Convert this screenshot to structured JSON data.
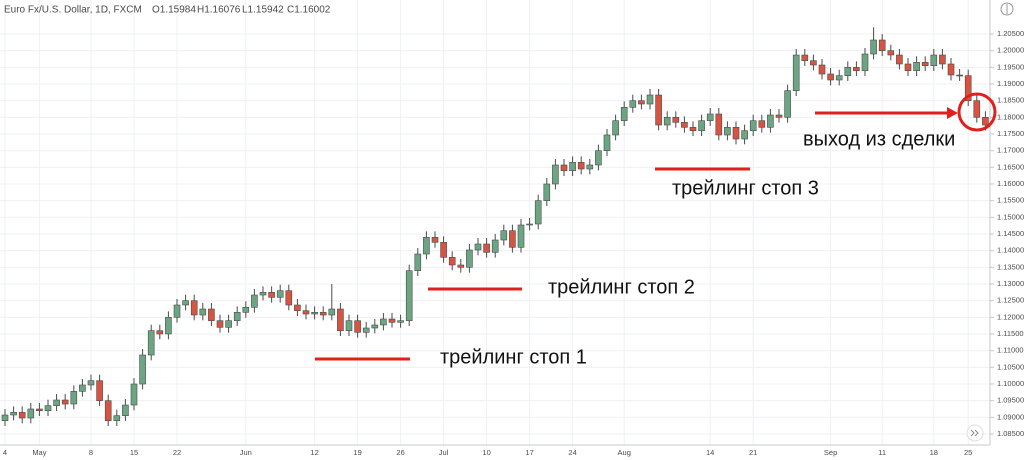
{
  "chart_data": {
    "type": "candlestick",
    "title": "Euro Fx/U.S. Dollar, 1D, FXCM",
    "header_values": [
      "O1.15984",
      "H1.16076",
      "L1.15942",
      "C1.16002"
    ],
    "annotations": [
      "трейлинг стоп 1",
      "трейлинг стоп 2",
      "трейлинг стоп 3",
      "выход из сделки"
    ],
    "up_color": "#6ba583",
    "down_color": "#d75442",
    "grid": true,
    "ylim": [
      1.0817,
      1.2152
    ],
    "yticks": [
      {
        "value": 1.085,
        "label": "1.08500"
      },
      {
        "value": 1.09,
        "label": "1.09000"
      },
      {
        "value": 1.095,
        "label": "1.09500"
      },
      {
        "value": 1.1,
        "label": "1.10000"
      },
      {
        "value": 1.105,
        "label": "1.10500"
      },
      {
        "value": 1.11,
        "label": "1.11000"
      },
      {
        "value": 1.115,
        "label": "1.11500"
      },
      {
        "value": 1.12,
        "label": "1.12000"
      },
      {
        "value": 1.125,
        "label": "1.12500"
      },
      {
        "value": 1.13,
        "label": "1.13000"
      },
      {
        "value": 1.135,
        "label": "1.13500"
      },
      {
        "value": 1.14,
        "label": "1.14000"
      },
      {
        "value": 1.145,
        "label": "1.14500"
      },
      {
        "value": 1.15,
        "label": "1.15000"
      },
      {
        "value": 1.155,
        "label": "1.15500"
      },
      {
        "value": 1.16,
        "label": "1.16000"
      },
      {
        "value": 1.165,
        "label": "1.16500"
      },
      {
        "value": 1.17,
        "label": "1.17000"
      },
      {
        "value": 1.175,
        "label": "1.17500"
      },
      {
        "value": 1.18,
        "label": "1.18000"
      },
      {
        "value": 1.185,
        "label": "1.18500"
      },
      {
        "value": 1.19,
        "label": "1.19000"
      },
      {
        "value": 1.195,
        "label": "1.19500"
      },
      {
        "value": 1.2,
        "label": "1.20000"
      },
      {
        "value": 1.205,
        "label": "1.20500"
      }
    ],
    "categories": [
      "4",
      null,
      null,
      null,
      "May",
      null,
      null,
      null,
      null,
      null,
      "8",
      null,
      null,
      null,
      null,
      "15",
      null,
      null,
      null,
      null,
      "22",
      null,
      null,
      null,
      null,
      null,
      null,
      null,
      "Jun",
      null,
      null,
      null,
      null,
      null,
      null,
      null,
      "12",
      null,
      null,
      null,
      null,
      "19",
      null,
      null,
      null,
      null,
      "26",
      null,
      null,
      null,
      null,
      "Jul",
      null,
      null,
      null,
      null,
      "10",
      null,
      null,
      null,
      null,
      "17",
      null,
      null,
      null,
      null,
      "24",
      null,
      null,
      null,
      null,
      null,
      "Aug",
      null,
      null,
      null,
      null,
      null,
      null,
      null,
      null,
      null,
      "14",
      null,
      null,
      null,
      null,
      "21",
      null,
      null,
      null,
      null,
      null,
      null,
      null,
      null,
      "Sep",
      null,
      null,
      null,
      null,
      null,
      "11",
      null,
      null,
      null,
      null,
      null,
      "18",
      null,
      null,
      null,
      "25",
      null,
      null
    ],
    "open": [
      1.089,
      1.0907,
      1.0915,
      1.0898,
      1.0925,
      1.092,
      1.0935,
      1.0952,
      1.094,
      1.0978,
      1.0997,
      1.101,
      1.095,
      1.089,
      1.0905,
      1.0937,
      1.1,
      1.1087,
      1.116,
      1.115,
      1.12,
      1.1237,
      1.125,
      1.1207,
      1.1225,
      1.119,
      1.117,
      1.119,
      1.1215,
      1.123,
      1.1267,
      1.1275,
      1.126,
      1.128,
      1.1237,
      1.122,
      1.121,
      1.1215,
      1.1207,
      1.1225,
      1.116,
      1.119,
      1.1155,
      1.1168,
      1.1177,
      1.1195,
      1.1185,
      1.119,
      1.134,
      1.139,
      1.144,
      1.1425,
      1.138,
      1.1357,
      1.135,
      1.1402,
      1.142,
      1.1395,
      1.1432,
      1.146,
      1.141,
      1.1477,
      1.148,
      1.155,
      1.16,
      1.1657,
      1.164,
      1.1665,
      1.1645,
      1.1657,
      1.17,
      1.1747,
      1.179,
      1.183,
      1.185,
      1.184,
      1.1867,
      1.1777,
      1.18,
      1.1785,
      1.177,
      1.176,
      1.179,
      1.181,
      1.1747,
      1.177,
      1.1735,
      1.176,
      1.179,
      1.177,
      1.1807,
      1.18,
      1.188,
      1.1987,
      1.197,
      1.1957,
      1.193,
      1.1912,
      1.1925,
      1.195,
      1.194,
      1.199,
      1.2032,
      1.2,
      1.1987,
      1.196,
      1.194,
      1.1965,
      1.1955,
      1.1987,
      1.196,
      1.1927,
      1.1925,
      1.185,
      1.18
    ],
    "high": [
      1.0925,
      1.0933,
      1.0933,
      1.0943,
      1.0943,
      1.0953,
      1.097,
      1.097,
      1.0996,
      1.1015,
      1.1028,
      1.1028,
      1.0968,
      1.0923,
      1.0955,
      1.1018,
      1.1105,
      1.1178,
      1.1178,
      1.1218,
      1.1255,
      1.1268,
      1.1268,
      1.1243,
      1.1243,
      1.1208,
      1.1208,
      1.1233,
      1.1248,
      1.1285,
      1.1293,
      1.1293,
      1.1298,
      1.1298,
      1.1255,
      1.1238,
      1.1233,
      1.1233,
      1.13,
      1.1243,
      1.1208,
      1.1208,
      1.1186,
      1.1195,
      1.1213,
      1.1213,
      1.1208,
      1.1358,
      1.1408,
      1.1458,
      1.1458,
      1.1443,
      1.1398,
      1.1375,
      1.142,
      1.1438,
      1.1438,
      1.145,
      1.1478,
      1.1478,
      1.1495,
      1.1498,
      1.1568,
      1.1618,
      1.1675,
      1.1675,
      1.1683,
      1.1683,
      1.1675,
      1.1718,
      1.1765,
      1.1808,
      1.1848,
      1.1868,
      1.1868,
      1.1885,
      1.1885,
      1.1818,
      1.1818,
      1.1803,
      1.1788,
      1.1808,
      1.1828,
      1.1828,
      1.1788,
      1.1788,
      1.1778,
      1.1808,
      1.1808,
      1.1825,
      1.1825,
      1.1898,
      1.2005,
      1.2005,
      1.1988,
      1.1975,
      1.1948,
      1.1943,
      1.1968,
      1.1968,
      1.2008,
      1.207,
      1.205,
      1.2018,
      1.2005,
      1.1978,
      1.1983,
      1.1983,
      1.2005,
      1.2005,
      1.1978,
      1.1945,
      1.1943,
      1.1868,
      1.1818
    ],
    "low": [
      1.0874,
      1.0891,
      1.0882,
      1.0882,
      1.0904,
      1.0904,
      1.0919,
      1.0924,
      1.0924,
      1.0962,
      1.0981,
      1.0934,
      1.0874,
      1.0874,
      1.0889,
      1.0921,
      1.0984,
      1.1071,
      1.1134,
      1.1134,
      1.1184,
      1.1221,
      1.1191,
      1.1191,
      1.1174,
      1.1154,
      1.1154,
      1.1174,
      1.1199,
      1.1214,
      1.1251,
      1.1244,
      1.1244,
      1.1221,
      1.1204,
      1.1194,
      1.1194,
      1.1191,
      1.1191,
      1.1144,
      1.1144,
      1.1139,
      1.1139,
      1.1152,
      1.1161,
      1.1169,
      1.1169,
      1.1174,
      1.1324,
      1.1374,
      1.1409,
      1.1364,
      1.1341,
      1.1334,
      1.1334,
      1.1386,
      1.1379,
      1.1379,
      1.1416,
      1.1394,
      1.1394,
      1.1461,
      1.1464,
      1.1534,
      1.1584,
      1.1624,
      1.1624,
      1.1629,
      1.1629,
      1.1641,
      1.1684,
      1.1731,
      1.1774,
      1.1814,
      1.1824,
      1.1824,
      1.1761,
      1.1761,
      1.1769,
      1.1754,
      1.1744,
      1.1744,
      1.1774,
      1.1731,
      1.1731,
      1.1719,
      1.1719,
      1.1744,
      1.1754,
      1.1754,
      1.1784,
      1.1784,
      1.1864,
      1.1954,
      1.1941,
      1.1914,
      1.1896,
      1.1896,
      1.1909,
      1.1924,
      1.1924,
      1.1974,
      1.1984,
      1.1971,
      1.1944,
      1.1924,
      1.1924,
      1.1939,
      1.1939,
      1.1944,
      1.1911,
      1.1909,
      1.1834,
      1.1784,
      1.1761
    ],
    "close": [
      1.0907,
      1.0915,
      1.0898,
      1.0925,
      1.092,
      1.0935,
      1.0952,
      1.094,
      1.0978,
      1.0997,
      1.101,
      1.095,
      1.089,
      1.0905,
      1.0937,
      1.1,
      1.1087,
      1.116,
      1.115,
      1.12,
      1.1237,
      1.125,
      1.1207,
      1.1225,
      1.119,
      1.117,
      1.119,
      1.1215,
      1.123,
      1.1267,
      1.1275,
      1.126,
      1.128,
      1.1237,
      1.122,
      1.121,
      1.1215,
      1.1207,
      1.1225,
      1.116,
      1.119,
      1.1155,
      1.1168,
      1.1177,
      1.1195,
      1.1185,
      1.119,
      1.134,
      1.139,
      1.144,
      1.1425,
      1.138,
      1.1357,
      1.135,
      1.1402,
      1.142,
      1.1395,
      1.1432,
      1.146,
      1.141,
      1.1477,
      1.148,
      1.155,
      1.16,
      1.1657,
      1.164,
      1.1665,
      1.1645,
      1.1657,
      1.17,
      1.1747,
      1.179,
      1.183,
      1.185,
      1.184,
      1.1867,
      1.1777,
      1.18,
      1.1785,
      1.177,
      1.176,
      1.179,
      1.181,
      1.1747,
      1.177,
      1.1735,
      1.176,
      1.179,
      1.177,
      1.1807,
      1.18,
      1.188,
      1.1987,
      1.197,
      1.1957,
      1.193,
      1.1912,
      1.1925,
      1.195,
      1.194,
      1.199,
      1.2032,
      1.2,
      1.1987,
      1.196,
      1.194,
      1.1965,
      1.1955,
      1.1987,
      1.196,
      1.1927,
      1.1925,
      1.185,
      1.18,
      1.1777
    ]
  }
}
